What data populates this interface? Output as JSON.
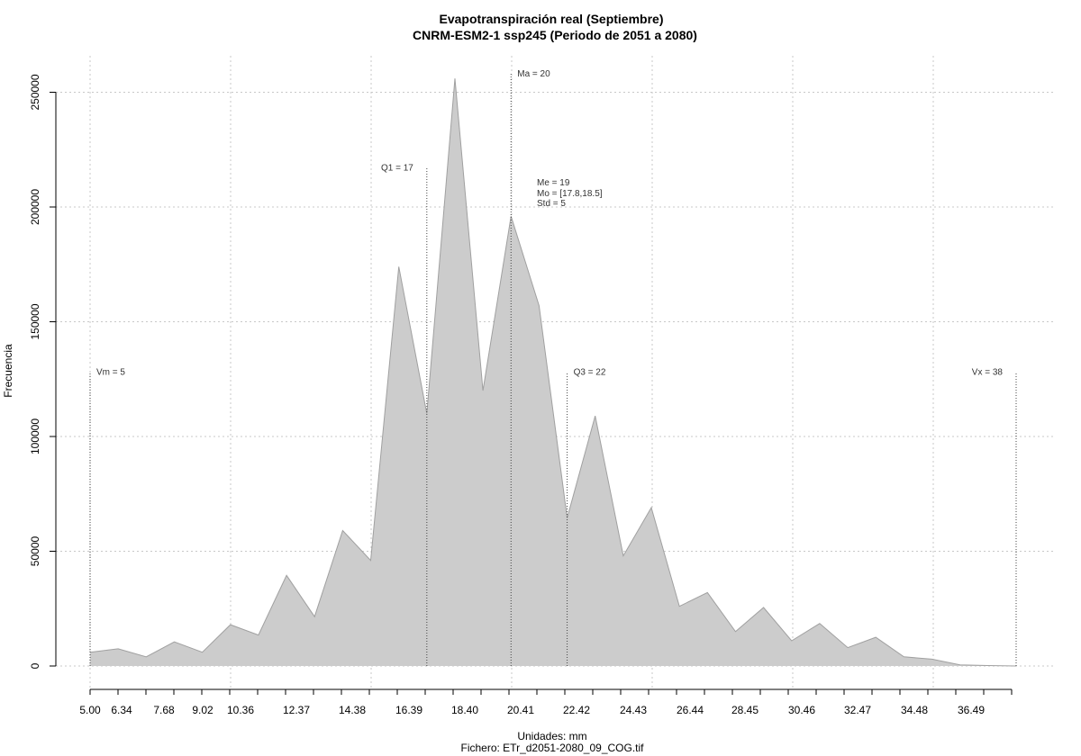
{
  "chart_data": {
    "type": "area",
    "title": "Evapotranspiración real (Septiembre)",
    "subtitle": "CNRM-ESM2-1 ssp245 (Periodo de 2051 a 2080)",
    "xlabel": "Unidades: mm",
    "footer": "Fichero: ETr_d2051-2080_09_COG.tif",
    "ylabel": "Frecuencia",
    "fill_color": "#cccccc",
    "line_color": "#a0a0a0",
    "xlim": [
      5.0,
      38.0
    ],
    "ylim": [
      0,
      260000
    ],
    "x_tick_labels": [
      "5.00",
      "6.34",
      "7.68",
      "9.02",
      "10.36",
      "12.37",
      "14.38",
      "16.39",
      "18.40",
      "20.41",
      "22.42",
      "24.43",
      "26.44",
      "28.45",
      "30.46",
      "32.47",
      "34.48",
      "36.49"
    ],
    "y_ticks": [
      0,
      50000,
      100000,
      150000,
      200000,
      250000
    ],
    "grid": true,
    "x": [
      5.0,
      6.0,
      7.0,
      8.0,
      9.0,
      10.0,
      11.0,
      12.0,
      13.0,
      14.0,
      15.0,
      16.0,
      17.0,
      18.0,
      19.0,
      20.0,
      21.0,
      22.0,
      23.0,
      24.0,
      25.0,
      26.0,
      27.0,
      28.0,
      29.0,
      30.0,
      31.0,
      32.0,
      33.0,
      34.0,
      35.0,
      36.0,
      37.0,
      38.0
    ],
    "values": [
      6000,
      7500,
      4000,
      10500,
      6000,
      18000,
      13500,
      39500,
      21500,
      59000,
      46000,
      174000,
      110000,
      256000,
      120000,
      196000,
      157000,
      64500,
      109000,
      48000,
      69000,
      26000,
      32000,
      15000,
      25500,
      11000,
      18500,
      8000,
      12500,
      4000,
      3000,
      500,
      200,
      0
    ],
    "markers": [
      {
        "label": "Vm = 5",
        "x": 5.0,
        "top": 128000,
        "label_side": "right"
      },
      {
        "label": "Q1 = 17",
        "x": 17.0,
        "top": 217000,
        "label_side": "left"
      },
      {
        "label": "Ma = 20",
        "x": 20.0,
        "top": 258000,
        "label_side": "right"
      },
      {
        "label": "Q3 = 22",
        "x": 22.0,
        "top": 128000,
        "label_side": "right"
      },
      {
        "label": "Vx = 38",
        "x": 38.0,
        "top": 128000,
        "label_side": "left"
      }
    ],
    "stats": [
      "Me = 19",
      "Mo = [17.8,18.5]",
      "Std = 5"
    ]
  }
}
